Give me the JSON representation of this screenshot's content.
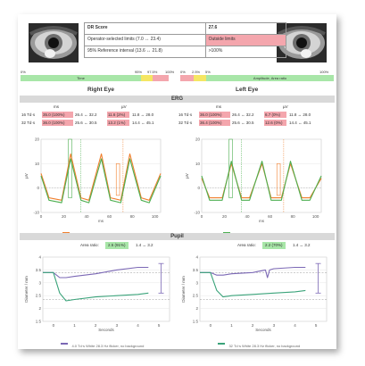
{
  "score_table": {
    "rows": [
      {
        "label": "DR Score",
        "value": "27.6"
      },
      {
        "label": "Operator-selected limits (7.0 ↔ 23.4)",
        "value": "Outside limits"
      },
      {
        "label": "95% Reference interval (13.6 ↔ 21.8)",
        "value": ">100%"
      }
    ]
  },
  "scale_bar": {
    "time": {
      "label": "Time",
      "left": "0%",
      "p95": "95%",
      "p97": "97.5%",
      "right": "100%"
    },
    "amp": {
      "label": "Amplitude, Area ratio",
      "left": "0%",
      "p2": "2.5%",
      "p5": "5%",
      "right": "100%"
    }
  },
  "right_eye_label": "Right Eye",
  "left_eye_label": "Left Eye",
  "erg_label": "ERG",
  "pupil_label": "Pupil",
  "erg": {
    "units": {
      "ms": "ms",
      "uv": "µV"
    },
    "right": [
      {
        "td": "16 Td·s",
        "ms": "35.0 (100%)",
        "ms_ref": "26.4 ↔ 32.2",
        "uv": "11.6 (2%)",
        "uv_ref": "11.8 ↔ 28.0"
      },
      {
        "td": "32 Td·s",
        "ms": "36.0 (100%)",
        "ms_ref": "25.6 ↔ 30.5",
        "uv": "13.2 (1%)",
        "uv_ref": "14.4 ↔ 45.1"
      }
    ],
    "left": [
      {
        "td": "16 Td·s",
        "ms": "36.0 (100%)",
        "ms_ref": "26.4 ↔ 32.2",
        "uv": "6.7 (0%)",
        "uv_ref": "11.8 ↔ 28.0"
      },
      {
        "td": "32 Td·s",
        "ms": "36.4 (100%)",
        "ms_ref": "25.6 ↔ 30.5",
        "uv": "12.6 (0%)",
        "uv_ref": "14.4 ↔ 45.1"
      }
    ],
    "captions": {
      "right": "16 Td·s White 28.3 Hz flicker, no background",
      "left": "32 Td·s White 28.3 Hz flicker, no background"
    }
  },
  "pupil": {
    "area_ratio_label": "Area ratio:",
    "right": {
      "value": "2.5 (91%)",
      "ref": "1.4 ↔ 3.2"
    },
    "left": {
      "value": "2.2 (70%)",
      "ref": "1.4 ↔ 3.2"
    },
    "captions": {
      "right": "4.0 Td·s White 28.3 Hz flicker, no background",
      "left": "32 Td·s White 28.3 Hz flicker, no background"
    }
  },
  "chart_data": [
    {
      "type": "line",
      "title": "",
      "xlabel": "ms",
      "ylabel": "µV",
      "xlim": [
        0,
        105
      ],
      "ylim": [
        -10,
        20
      ],
      "x_ticks": [
        "0",
        "20",
        "40",
        "60",
        "80",
        "100"
      ],
      "y_ticks": [
        "-10",
        "0",
        "10",
        "20"
      ],
      "series": [
        {
          "color": "#f07f2e",
          "x": [
            0,
            7,
            18,
            26,
            35,
            42,
            53,
            61,
            70,
            78,
            88,
            95,
            105
          ],
          "values": [
            6,
            -4,
            -5,
            14,
            -4,
            -5,
            14,
            -4,
            -5,
            14,
            -4,
            -5,
            6
          ]
        },
        {
          "color": "#4caf50",
          "x": [
            0,
            7,
            18,
            26,
            35,
            42,
            53,
            61,
            70,
            78,
            88,
            95,
            105
          ],
          "values": [
            5,
            -5,
            -6,
            12,
            -5,
            -6,
            12,
            -5,
            -6,
            12,
            -5,
            -6,
            5
          ]
        }
      ]
    },
    {
      "type": "line",
      "title": "",
      "xlabel": "ms",
      "ylabel": "µV",
      "xlim": [
        0,
        105
      ],
      "ylim": [
        -10,
        20
      ],
      "x_ticks": [
        "0",
        "20",
        "40",
        "60",
        "80",
        "100"
      ],
      "y_ticks": [
        "-10",
        "0",
        "10",
        "20"
      ],
      "series": [
        {
          "color": "#f07f2e",
          "x": [
            0,
            7,
            18,
            26,
            35,
            42,
            53,
            61,
            70,
            78,
            88,
            95,
            105
          ],
          "values": [
            4,
            -4,
            -4,
            10,
            -4,
            -4,
            10,
            -4,
            -4,
            10,
            -4,
            -4,
            4
          ]
        },
        {
          "color": "#4caf50",
          "x": [
            0,
            7,
            18,
            26,
            35,
            42,
            53,
            61,
            70,
            78,
            88,
            95,
            105
          ],
          "values": [
            5,
            -5,
            -5,
            11,
            -5,
            -5,
            11,
            -5,
            -5,
            11,
            -5,
            -5,
            5
          ]
        }
      ]
    },
    {
      "type": "line",
      "xlabel": "Seconds",
      "ylabel": "Diameter / mm",
      "xlim": [
        -0.5,
        5.5
      ],
      "ylim": [
        1.5,
        4
      ],
      "x_ticks": [
        "0",
        "1",
        "2",
        "3",
        "4",
        "5"
      ],
      "y_ticks": [
        "1.5",
        "2",
        "2.5",
        "3",
        "3.5",
        "4"
      ],
      "series": [
        {
          "color": "#7b68b5",
          "x": [
            -0.5,
            0,
            0.3,
            0.6,
            1,
            2,
            3,
            4,
            4.5
          ],
          "values": [
            3.4,
            3.4,
            3.2,
            3.2,
            3.25,
            3.35,
            3.5,
            3.6,
            3.6
          ]
        },
        {
          "color": "#3aa37a",
          "x": [
            -0.5,
            0,
            0.3,
            0.6,
            1,
            2,
            3,
            4,
            4.5
          ],
          "values": [
            3.4,
            3.4,
            2.6,
            2.3,
            2.35,
            2.45,
            2.5,
            2.55,
            2.6
          ]
        }
      ]
    },
    {
      "type": "line",
      "xlabel": "Seconds",
      "ylabel": "Diameter / mm",
      "xlim": [
        -0.5,
        5.5
      ],
      "ylim": [
        1.5,
        4
      ],
      "x_ticks": [
        "0",
        "1",
        "2",
        "3",
        "4",
        "5"
      ],
      "y_ticks": [
        "1.5",
        "2",
        "2.5",
        "3",
        "3.5",
        "4"
      ],
      "series": [
        {
          "color": "#7b68b5",
          "x": [
            -0.5,
            0,
            0.3,
            0.6,
            1,
            2,
            2.6,
            2.7,
            2.8,
            3,
            4,
            4.5
          ],
          "values": [
            3.4,
            3.4,
            3.3,
            3.3,
            3.35,
            3.4,
            3.5,
            3.2,
            3.5,
            3.55,
            3.6,
            3.6
          ]
        },
        {
          "color": "#3aa37a",
          "x": [
            -0.5,
            0,
            0.3,
            0.6,
            1,
            2,
            3,
            4,
            4.5
          ],
          "values": [
            3.4,
            3.4,
            2.7,
            2.45,
            2.5,
            2.55,
            2.6,
            2.65,
            2.7
          ]
        }
      ]
    }
  ]
}
